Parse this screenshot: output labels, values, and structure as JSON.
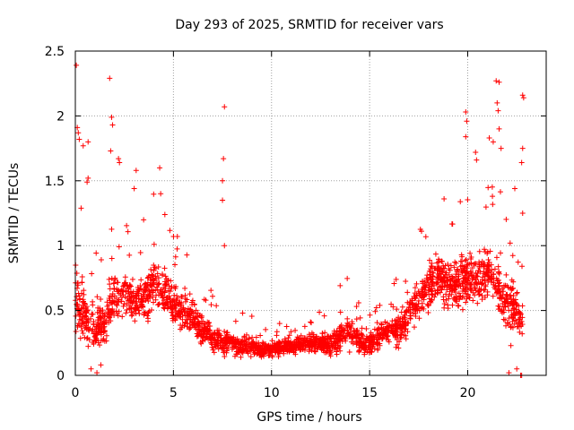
{
  "chart_data": {
    "type": "scatter",
    "title": "Day 293 of 2025, SRMTID for receiver vars",
    "xlabel": "GPS time / hours",
    "ylabel": "SRMTID / TECUs",
    "xlim": [
      0,
      24
    ],
    "ylim": [
      0,
      2.5
    ],
    "x_ticks": [
      "0",
      "5",
      "10",
      "15",
      "20"
    ],
    "x_tick_values": [
      0,
      5,
      10,
      15,
      20
    ],
    "y_ticks": [
      "0",
      "0.5",
      "1",
      "1.5",
      "2",
      "2.5"
    ],
    "y_tick_values": [
      0,
      0.5,
      1,
      1.5,
      2,
      2.5
    ],
    "grid": true,
    "marker": "+",
    "series_color": "#ff0000",
    "profile_hours": [
      0,
      0.5,
      1,
      1.5,
      2,
      2.5,
      3,
      3.5,
      4,
      4.5,
      5,
      5.5,
      6,
      6.5,
      7,
      7.5,
      8,
      8.5,
      9,
      9.5,
      10,
      10.5,
      11,
      11.5,
      12,
      12.5,
      13,
      13.5,
      14,
      14.5,
      15,
      15.5,
      16,
      16.5,
      17,
      17.5,
      18,
      18.5,
      19,
      19.5,
      20,
      20.5,
      21,
      21.5,
      22,
      22.5,
      22.8
    ],
    "profile_typical": [
      0.6,
      0.45,
      0.35,
      0.4,
      0.6,
      0.65,
      0.55,
      0.6,
      0.7,
      0.65,
      0.55,
      0.5,
      0.45,
      0.35,
      0.3,
      0.25,
      0.25,
      0.22,
      0.22,
      0.2,
      0.2,
      0.22,
      0.22,
      0.24,
      0.25,
      0.25,
      0.25,
      0.3,
      0.35,
      0.25,
      0.25,
      0.3,
      0.35,
      0.35,
      0.45,
      0.6,
      0.7,
      0.75,
      0.7,
      0.7,
      0.75,
      0.75,
      0.8,
      0.7,
      0.55,
      0.5,
      0.4
    ],
    "profile_spread": [
      0.45,
      0.35,
      0.3,
      0.25,
      0.3,
      0.25,
      0.25,
      0.3,
      0.35,
      0.3,
      0.25,
      0.25,
      0.2,
      0.2,
      0.15,
      0.15,
      0.12,
      0.12,
      0.12,
      0.12,
      0.1,
      0.1,
      0.1,
      0.1,
      0.1,
      0.12,
      0.15,
      0.2,
      0.2,
      0.15,
      0.15,
      0.15,
      0.15,
      0.2,
      0.25,
      0.3,
      0.3,
      0.3,
      0.3,
      0.3,
      0.3,
      0.3,
      0.35,
      0.35,
      0.35,
      0.3,
      0.3
    ],
    "points_per_half_hour": 55,
    "outliers": [
      {
        "x": 0.05,
        "y": 2.39
      },
      {
        "x": 0.1,
        "y": 1.91
      },
      {
        "x": 0.15,
        "y": 1.87
      },
      {
        "x": 0.2,
        "y": 1.82
      },
      {
        "x": 0.4,
        "y": 1.77
      },
      {
        "x": 0.65,
        "y": 1.8
      },
      {
        "x": 0.6,
        "y": 1.49
      },
      {
        "x": 0.65,
        "y": 1.52
      },
      {
        "x": 1.75,
        "y": 2.29
      },
      {
        "x": 1.8,
        "y": 1.73
      },
      {
        "x": 1.85,
        "y": 1.99
      },
      {
        "x": 1.9,
        "y": 1.93
      },
      {
        "x": 2.2,
        "y": 1.67
      },
      {
        "x": 2.25,
        "y": 1.64
      },
      {
        "x": 3.1,
        "y": 1.58
      },
      {
        "x": 3.0,
        "y": 1.44
      },
      {
        "x": 4.3,
        "y": 1.6
      },
      {
        "x": 4.35,
        "y": 1.4
      },
      {
        "x": 7.6,
        "y": 2.07
      },
      {
        "x": 7.55,
        "y": 1.67
      },
      {
        "x": 7.5,
        "y": 1.5
      },
      {
        "x": 7.5,
        "y": 1.35
      },
      {
        "x": 7.6,
        "y": 1.0
      },
      {
        "x": 19.9,
        "y": 2.03
      },
      {
        "x": 19.95,
        "y": 1.96
      },
      {
        "x": 19.9,
        "y": 1.84
      },
      {
        "x": 20.4,
        "y": 1.72
      },
      {
        "x": 20.45,
        "y": 1.66
      },
      {
        "x": 21.1,
        "y": 1.83
      },
      {
        "x": 21.3,
        "y": 1.8
      },
      {
        "x": 21.45,
        "y": 2.27
      },
      {
        "x": 21.6,
        "y": 2.26
      },
      {
        "x": 21.5,
        "y": 2.1
      },
      {
        "x": 21.55,
        "y": 2.04
      },
      {
        "x": 21.6,
        "y": 1.9
      },
      {
        "x": 21.7,
        "y": 1.75
      },
      {
        "x": 22.8,
        "y": 2.16
      },
      {
        "x": 22.85,
        "y": 2.14
      },
      {
        "x": 22.8,
        "y": 1.75
      },
      {
        "x": 22.75,
        "y": 1.64
      },
      {
        "x": 22.4,
        "y": 1.44
      },
      {
        "x": 22.8,
        "y": 1.25
      },
      {
        "x": 22.2,
        "y": 0.23
      },
      {
        "x": 22.5,
        "y": 0.05
      },
      {
        "x": 22.1,
        "y": 0.02
      },
      {
        "x": 22.7,
        "y": 0.0
      },
      {
        "x": 22.75,
        "y": 0.0
      },
      {
        "x": 1.1,
        "y": 0.02
      },
      {
        "x": 0.8,
        "y": 0.05
      },
      {
        "x": 1.3,
        "y": 0.08
      }
    ]
  }
}
